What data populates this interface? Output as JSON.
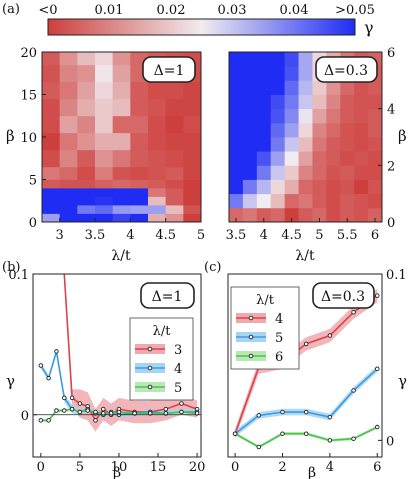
{
  "panel_labels": {
    "a": "(a)",
    "b": "(b)",
    "c": "(c)"
  },
  "colorbar": {
    "ticks": [
      "<0",
      "0.01",
      "0.02",
      "0.03",
      "0.04",
      ">0.05"
    ],
    "symbol": "γ",
    "colors": {
      "low": "#cd3f3d",
      "mid": "#f1ecef",
      "high": "#1f2cf3"
    }
  },
  "chart_data": [
    {
      "type": "heatmap",
      "panel": "(a) left",
      "annotation": "Δ=1",
      "xlabel": "λ/t",
      "ylabel": "β",
      "xticks": [
        "3",
        "3.5",
        "4",
        "4.5",
        "5"
      ],
      "yticks": [
        "0",
        "5",
        "10",
        "15",
        "20"
      ],
      "xlim": [
        2.75,
        5.0
      ],
      "ylim": [
        0,
        20
      ],
      "x": [
        2.875,
        3.125,
        3.375,
        3.625,
        3.875,
        4.125,
        4.375,
        4.625,
        4.875
      ],
      "y": [
        0.5,
        1.5,
        2.5,
        3.5,
        4.5,
        5.5,
        7.5,
        9.5,
        11.5,
        13.5,
        15.5,
        17.5,
        19.5
      ],
      "z": [
        [
          0.035,
          0.05,
          0.05,
          0.05,
          0.047,
          0.05,
          0.016,
          0.012,
          0.0
        ],
        [
          0.05,
          0.05,
          0.04,
          0.042,
          0.036,
          0.035,
          0.035,
          0.018,
          0.003
        ],
        [
          0.05,
          0.05,
          0.05,
          0.049,
          0.05,
          0.05,
          0.018,
          0.004,
          0.0
        ],
        [
          0.05,
          0.05,
          0.05,
          0.05,
          0.05,
          0.05,
          0.008,
          0.004,
          0.0
        ],
        [
          0.004,
          0.003,
          0.003,
          0.005,
          0.006,
          0.005,
          0.004,
          0.002,
          0.0
        ],
        [
          0.008,
          0.006,
          0.002,
          0.009,
          0.003,
          0.002,
          0.003,
          0.004,
          0.001
        ],
        [
          0.002,
          0.01,
          0.004,
          0.012,
          0.008,
          0.004,
          0.003,
          0.002,
          0.001
        ],
        [
          0.0,
          0.008,
          0.012,
          0.016,
          0.016,
          0.004,
          0.002,
          0.001,
          0.001
        ],
        [
          0.002,
          0.014,
          0.01,
          0.02,
          0.006,
          0.006,
          0.002,
          0.0,
          0.002
        ],
        [
          0.002,
          0.01,
          0.016,
          0.02,
          0.018,
          0.004,
          0.003,
          0.001,
          0.001
        ],
        [
          0.004,
          0.008,
          0.014,
          0.022,
          0.016,
          0.004,
          0.002,
          0.002,
          0.001
        ],
        [
          0.003,
          0.01,
          0.012,
          0.024,
          0.014,
          0.006,
          0.003,
          0.002,
          0.002
        ],
        [
          0.004,
          0.012,
          0.018,
          0.022,
          0.012,
          0.006,
          0.004,
          0.003,
          0.002
        ]
      ]
    },
    {
      "type": "heatmap",
      "panel": "(a) right",
      "annotation": "Δ=0.3",
      "xlabel": "λ/t",
      "ylabel": "β",
      "xticks": [
        "3.5",
        "4",
        "4.5",
        "5",
        "5.5",
        "6"
      ],
      "yticks": [
        "0",
        "2",
        "4",
        "6"
      ],
      "xlim": [
        3.375,
        6.125
      ],
      "ylim": [
        0,
        6
      ],
      "x": [
        3.5,
        3.75,
        4.0,
        4.25,
        4.5,
        4.75,
        5.0,
        5.25,
        5.5,
        5.75,
        6.0
      ],
      "y": [
        0.25,
        0.75,
        1.25,
        1.75,
        2.25,
        2.75,
        3.25,
        3.75,
        4.25,
        4.75,
        5.25,
        5.75
      ],
      "z": [
        [
          0.006,
          0.008,
          0.004,
          0.006,
          0.0,
          0.004,
          0.006,
          0.002,
          0.004,
          0.003,
          0.005
        ],
        [
          0.04,
          0.03,
          0.025,
          0.018,
          0.006,
          0.008,
          0.004,
          0.002,
          0.004,
          0.003,
          0.002
        ],
        [
          0.05,
          0.04,
          0.032,
          0.022,
          0.016,
          0.006,
          0.004,
          0.002,
          0.003,
          0.0,
          0.003
        ],
        [
          0.05,
          0.05,
          0.04,
          0.03,
          0.02,
          0.01,
          0.006,
          0.003,
          0.004,
          0.002,
          0.002
        ],
        [
          0.05,
          0.05,
          0.045,
          0.035,
          0.025,
          0.014,
          0.006,
          0.004,
          0.002,
          0.003,
          0.002
        ],
        [
          0.05,
          0.05,
          0.05,
          0.04,
          0.03,
          0.018,
          0.008,
          0.004,
          0.003,
          0.002,
          0.003
        ],
        [
          0.05,
          0.05,
          0.05,
          0.042,
          0.035,
          0.022,
          0.01,
          0.006,
          0.003,
          0.002,
          0.004
        ],
        [
          0.05,
          0.05,
          0.05,
          0.045,
          0.038,
          0.026,
          0.014,
          0.008,
          0.004,
          0.003,
          0.004
        ],
        [
          0.05,
          0.05,
          0.05,
          0.046,
          0.04,
          0.03,
          0.018,
          0.01,
          0.004,
          0.003,
          0.003
        ],
        [
          0.05,
          0.05,
          0.05,
          0.05,
          0.042,
          0.032,
          0.02,
          0.012,
          0.006,
          0.003,
          0.004
        ],
        [
          0.05,
          0.05,
          0.05,
          0.05,
          0.045,
          0.034,
          0.022,
          0.014,
          0.006,
          0.004,
          0.004
        ],
        [
          0.05,
          0.05,
          0.05,
          0.05,
          0.046,
          0.034,
          0.022,
          0.016,
          0.008,
          0.004,
          0.005
        ]
      ]
    },
    {
      "type": "line",
      "panel": "(b)",
      "annotation": "Δ=1",
      "xlabel": "β",
      "ylabel": "γ",
      "xticks": [
        "0",
        "5",
        "10",
        "15",
        "20"
      ],
      "yticks": [
        "0",
        "0.1"
      ],
      "xlim": [
        -1,
        20.5
      ],
      "ylim": [
        -0.03,
        0.1
      ],
      "legend_title": "λ/t",
      "legend_position": "center-right",
      "series": [
        {
          "name": "3",
          "color": "#d9434a",
          "band": "#f0a9ae",
          "x": [
            3,
            4,
            5,
            6,
            7,
            8,
            9,
            10,
            12,
            14,
            16,
            18,
            20
          ],
          "y": [
            0.11,
            0.012,
            0.008,
            0.006,
            -0.004,
            0.004,
            0.0,
            0.004,
            0.002,
            0.002,
            0.004,
            0.008,
            0.004
          ],
          "err": [
            0.003,
            0.006,
            0.01,
            0.01,
            0.008,
            0.008,
            0.008,
            0.008,
            0.008,
            0.008,
            0.008,
            0.008,
            0.006
          ]
        },
        {
          "name": "4",
          "color": "#3b9de0",
          "band": "#a5d4f4",
          "x": [
            0,
            1,
            2,
            3,
            4,
            5,
            6,
            7,
            8,
            9,
            10,
            12,
            14,
            16,
            18,
            20
          ],
          "y": [
            0.035,
            0.026,
            0.045,
            0.012,
            0.004,
            0.002,
            0.004,
            0.001,
            0.0,
            0.002,
            0.0,
            0.001,
            0.002,
            0.001,
            0.002,
            0.002
          ],
          "err": [
            0.002,
            0.002,
            0.002,
            0.003,
            0.003,
            0.002,
            0.002,
            0.002,
            0.002,
            0.002,
            0.002,
            0.002,
            0.002,
            0.002,
            0.002,
            0.002
          ]
        },
        {
          "name": "5",
          "color": "#49c24e",
          "band": "#b9e8b4",
          "x": [
            0,
            1,
            2,
            3,
            4,
            5,
            6,
            7,
            8,
            9,
            10,
            12,
            14,
            16,
            18,
            20
          ],
          "y": [
            -0.004,
            -0.004,
            0.003,
            0.003,
            0.004,
            0.002,
            0.003,
            0.002,
            0.001,
            0.001,
            0.002,
            0.001,
            0.001,
            0.001,
            0.002,
            0.001
          ],
          "err": [
            0.001,
            0.001,
            0.001,
            0.001,
            0.001,
            0.001,
            0.001,
            0.001,
            0.001,
            0.001,
            0.001,
            0.001,
            0.001,
            0.001,
            0.001,
            0.001
          ]
        }
      ]
    },
    {
      "type": "line",
      "panel": "(c)",
      "annotation": "Δ=0.3",
      "xlabel": "β",
      "ylabel": "γ",
      "xticks": [
        "0",
        "2",
        "4",
        "6"
      ],
      "yticks": [
        "0",
        "0.1"
      ],
      "xlim": [
        -0.3,
        6.2
      ],
      "ylim": [
        -0.01,
        0.1
      ],
      "legend_title": "λ/t",
      "legend_position": "top-left",
      "series": [
        {
          "name": "4",
          "color": "#d9434a",
          "band": "#f0a9ae",
          "x": [
            0,
            1,
            2,
            3,
            4,
            5,
            6
          ],
          "y": [
            0.004,
            0.044,
            0.047,
            0.058,
            0.063,
            0.077,
            0.087
          ],
          "err": [
            0.003,
            0.004,
            0.004,
            0.004,
            0.004,
            0.004,
            0.004
          ]
        },
        {
          "name": "5",
          "color": "#3b9de0",
          "band": "#a5d4f4",
          "x": [
            0,
            1,
            2,
            3,
            4,
            5,
            6
          ],
          "y": [
            0.004,
            0.015,
            0.017,
            0.017,
            0.014,
            0.03,
            0.043
          ],
          "err": [
            0.002,
            0.002,
            0.002,
            0.002,
            0.002,
            0.002,
            0.002
          ]
        },
        {
          "name": "6",
          "color": "#49c24e",
          "band": "#b9e8b4",
          "x": [
            0,
            1,
            2,
            3,
            4,
            5,
            6
          ],
          "y": [
            0.004,
            -0.004,
            0.004,
            0.004,
            0.0,
            0.001,
            0.008
          ],
          "err": [
            0.001,
            0.001,
            0.001,
            0.001,
            0.001,
            0.001,
            0.001
          ]
        }
      ]
    }
  ]
}
